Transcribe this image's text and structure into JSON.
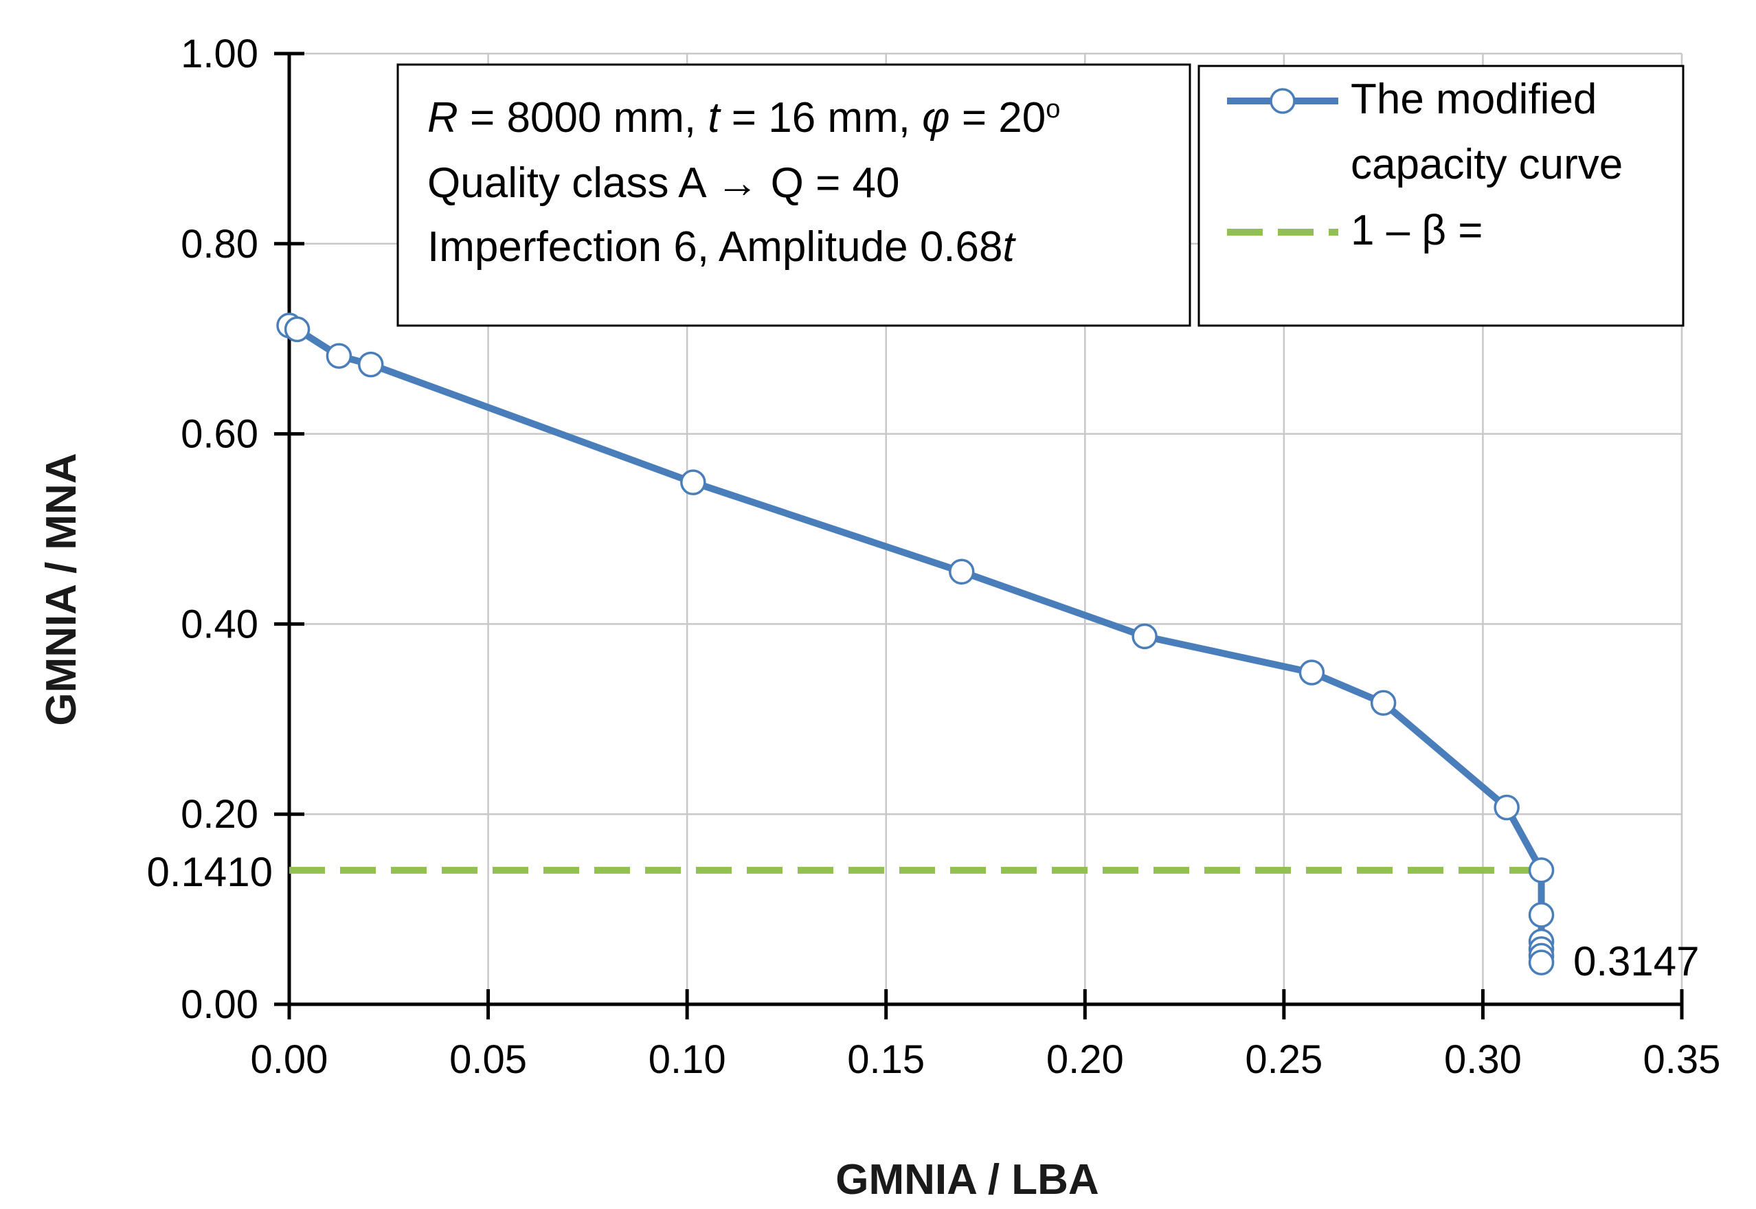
{
  "chart_data": {
    "type": "line",
    "xlabel": "GMNIA / LBA",
    "ylabel": "GMNIA / MNA",
    "xlim": [
      0,
      0.35
    ],
    "ylim": [
      0,
      1.0
    ],
    "x_ticks": [
      "0.00",
      "0.05",
      "0.10",
      "0.15",
      "0.20",
      "0.25",
      "0.30",
      "0.35"
    ],
    "y_ticks": [
      "0.00",
      "0.20",
      "0.40",
      "0.60",
      "0.80",
      "1.00"
    ],
    "grid": true,
    "series": [
      {
        "name": "The modified capacity curve",
        "legend_line1": "The modified",
        "legend_line2": "capacity curve",
        "color": "#4a7ebb",
        "x": [
          0.0,
          0.002,
          0.0125,
          0.0205,
          0.1015,
          0.169,
          0.215,
          0.257,
          0.275,
          0.306,
          0.3147,
          0.3147,
          0.3147,
          0.3147,
          0.3147,
          0.3147
        ],
        "y": [
          0.714,
          0.71,
          0.682,
          0.673,
          0.549,
          0.455,
          0.387,
          0.349,
          0.317,
          0.207,
          0.141,
          0.094,
          0.066,
          0.058,
          0.051,
          0.044
        ]
      },
      {
        "name": "1 – β =",
        "color": "#92c050",
        "style": "dashed",
        "x": [
          0.0,
          0.3147
        ],
        "y": [
          0.141,
          0.141
        ]
      }
    ],
    "annotations": {
      "y_marker_label": "0.1410",
      "y_marker_value": 0.141,
      "x_marker_label": "0.3147",
      "x_marker_value": 0.3147
    },
    "info_box": {
      "line1": {
        "R_sym": "R",
        "R_val": " = 8000 mm, ",
        "t_sym": "t",
        "t_val": " = 16 mm, ",
        "phi_sym": "φ",
        "phi_val": " = 20",
        "deg": "o"
      },
      "line2": "Quality class A  →  Q = 40",
      "line3": {
        "text": "Imperfection 6, Amplitude 0.68",
        "t_sym": "t"
      }
    },
    "legend_position": "top-right"
  }
}
